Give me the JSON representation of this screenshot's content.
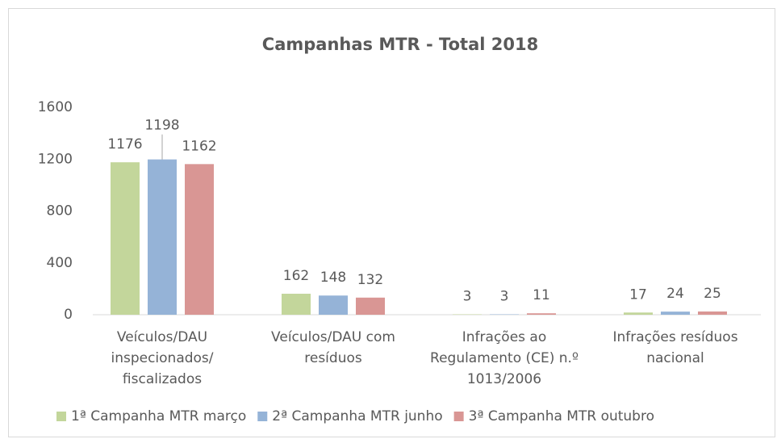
{
  "chart_data": {
    "type": "bar",
    "title": "Campanhas MTR - Total 2018",
    "categories": [
      "Veículos/DAU inspecionados/ fiscalizados",
      "Veículos/DAU com resíduos",
      "Infrações ao Regulamento (CE) n.º 1013/2006",
      "Infrações resíduos nacional"
    ],
    "series": [
      {
        "name": "1ª Campanha MTR março",
        "color": "#c3d69b",
        "values": [
          1176,
          162,
          3,
          17
        ]
      },
      {
        "name": "2ª Campanha MTR junho",
        "color": "#95b3d7",
        "values": [
          1198,
          148,
          3,
          24
        ]
      },
      {
        "name": "3ª Campanha MTR outubro",
        "color": "#d99694",
        "values": [
          1162,
          132,
          11,
          25
        ]
      }
    ],
    "ylim": [
      0,
      1600
    ],
    "yticks": [
      0,
      400,
      800,
      1200,
      1600
    ],
    "grid": false,
    "legend": "bottom"
  }
}
